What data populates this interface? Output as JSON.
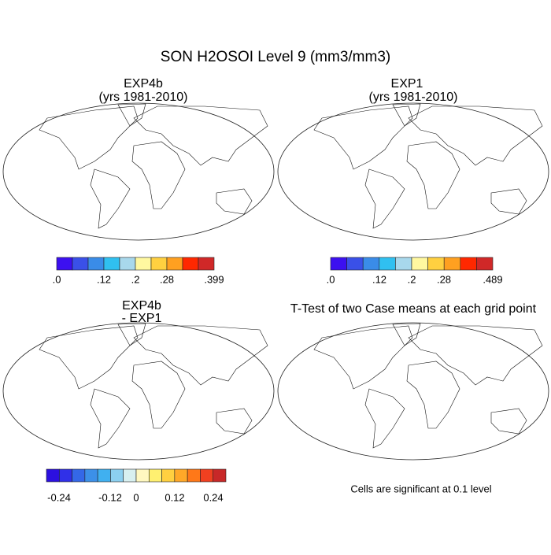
{
  "title": "SON H2OSOI Level 9 (mm3/mm3)",
  "panels": [
    {
      "title": [
        "EXP4b",
        "(yrs 1981-2010)"
      ],
      "colorbar": {
        "colors": [
          "#3c10f0",
          "#3a50e8",
          "#3a8ce8",
          "#30c0f0",
          "#a8d8ec",
          "#fff8a0",
          "#ffd040",
          "#ffa020",
          "#ff2800",
          "#d02828"
        ],
        "labels": [
          ".0",
          ".12",
          ".2",
          ".28",
          ".399"
        ]
      }
    },
    {
      "title": [
        "EXP1",
        "(yrs 1981-2010)"
      ],
      "colorbar": {
        "colors": [
          "#3c10f0",
          "#3a50e8",
          "#3a8ce8",
          "#30c0f0",
          "#a8d8ec",
          "#fff8a0",
          "#ffd040",
          "#ffa020",
          "#ff2800",
          "#d02828"
        ],
        "labels": [
          ".0",
          ".12",
          ".2",
          ".28",
          ".489"
        ]
      }
    },
    {
      "title": [
        "EXP4b",
        "- EXP1"
      ],
      "colorbar": {
        "colors": [
          "#2c10e0",
          "#3030e8",
          "#3468e8",
          "#3c90e8",
          "#40b0f0",
          "#8cd0f0",
          "#d8f0f0",
          "#fff8c0",
          "#fff070",
          "#ffd040",
          "#ffa828",
          "#ff7818",
          "#f04020",
          "#c82828"
        ],
        "labels": [
          "-0.24",
          "-0.12",
          "0",
          "0.12",
          "0.24"
        ]
      }
    },
    {
      "title": [
        "T-Test of two Case means at each grid point"
      ],
      "note": "Cells are significant at 0.1 level"
    }
  ]
}
